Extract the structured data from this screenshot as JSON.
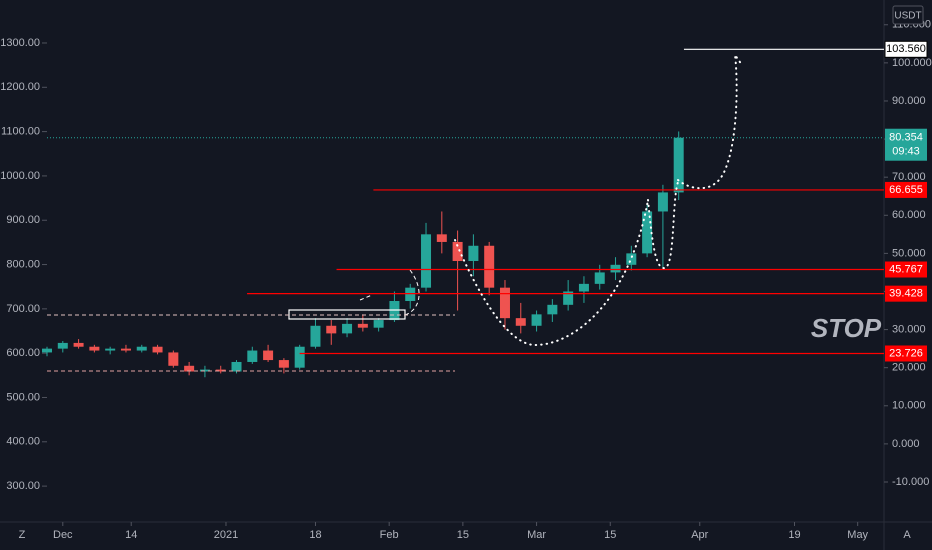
{
  "chart_data": {
    "type": "candlestick",
    "xlim": [
      -3,
      156
    ],
    "xticks": [
      {
        "value": 0,
        "label": "Dec"
      },
      {
        "value": 13,
        "label": "14"
      },
      {
        "value": 31,
        "label": "2021"
      },
      {
        "value": 48,
        "label": "18"
      },
      {
        "value": 62,
        "label": "Feb"
      },
      {
        "value": 76,
        "label": "15"
      },
      {
        "value": 90,
        "label": "Mar"
      },
      {
        "value": 104,
        "label": "15"
      },
      {
        "value": 121,
        "label": "Apr"
      },
      {
        "value": 139,
        "label": "19"
      },
      {
        "value": 151,
        "label": "May"
      }
    ],
    "ylim": [
      219,
      1397
    ],
    "yticks": [
      {
        "value": 300,
        "label": "300.00"
      },
      {
        "value": 400,
        "label": "400.00"
      },
      {
        "value": 500,
        "label": "500.00"
      },
      {
        "value": 600,
        "label": "600.00"
      },
      {
        "value": 700,
        "label": "700.00"
      },
      {
        "value": 800,
        "label": "800.00"
      },
      {
        "value": 900,
        "label": "900.00"
      },
      {
        "value": 1000,
        "label": "1000.00"
      },
      {
        "value": 1100,
        "label": "1100.00"
      },
      {
        "value": 1200,
        "label": "1200.00"
      },
      {
        "value": 1300,
        "label": "1300.00"
      }
    ],
    "y2lim": [
      -20.5,
      116.5
    ],
    "y2ticks": [
      {
        "value": -10,
        "label": "-10.000"
      },
      {
        "value": 0,
        "label": "0.000"
      },
      {
        "value": 10,
        "label": "10.000"
      },
      {
        "value": 20,
        "label": "20.000"
      },
      {
        "value": 30,
        "label": "30.000"
      },
      {
        "value": 40,
        "label": "40.000"
      },
      {
        "value": 50,
        "label": "50.000"
      },
      {
        "value": 60,
        "label": "60.000"
      },
      {
        "value": 70,
        "label": "70.000"
      },
      {
        "value": 80,
        "label": "80.000"
      },
      {
        "value": 90,
        "label": "90.000"
      },
      {
        "value": 100,
        "label": "100.000"
      },
      {
        "value": 110,
        "label": "110.000"
      }
    ],
    "y2_unit": "USDT",
    "grid": false,
    "series": [
      {
        "axis": "y2",
        "up_color": "#26a69a",
        "down_color": "#ef5350",
        "x": [
          -3,
          0,
          3,
          6,
          9,
          12,
          15,
          18,
          21,
          24,
          27,
          30,
          33,
          36,
          39,
          42,
          45,
          48,
          51,
          54,
          57,
          60,
          63,
          66,
          69,
          72,
          75,
          78,
          81,
          84,
          87,
          90,
          93,
          96,
          99,
          102,
          105,
          108,
          111,
          114,
          117
        ],
        "open": [
          24,
          25,
          26.5,
          25.5,
          24.5,
          25,
          24.5,
          25.5,
          24,
          20.5,
          19,
          19.5,
          19,
          21.5,
          24.5,
          22,
          20,
          25.5,
          31,
          29,
          31.5,
          30.5,
          32.5,
          37.5,
          41,
          55,
          53,
          48,
          52,
          41,
          33,
          31,
          34,
          36.5,
          40,
          42,
          45,
          47,
          50,
          61,
          66
        ],
        "high": [
          25.5,
          27,
          27.5,
          26,
          25.5,
          26,
          26,
          26,
          24.5,
          21.5,
          20.5,
          20.5,
          22,
          25.5,
          26,
          22.5,
          26,
          33,
          32.5,
          33,
          34,
          33,
          40,
          42,
          58,
          61,
          56,
          55,
          53,
          43,
          37,
          35,
          38,
          43,
          44,
          47,
          49,
          52,
          63,
          68,
          82
        ],
        "low": [
          23,
          24,
          25,
          24,
          23.5,
          24,
          24,
          23.5,
          20,
          18,
          17.5,
          18.5,
          18.5,
          21,
          21.5,
          18.5,
          19.5,
          25,
          26,
          28,
          29.5,
          29.5,
          32,
          35.5,
          40,
          50,
          35,
          44,
          39,
          30,
          29,
          29.5,
          32,
          35,
          37,
          40.5,
          43,
          45.5,
          49,
          46,
          64
        ],
        "close": [
          25,
          26.5,
          25.5,
          24.5,
          25,
          24.5,
          25.5,
          24,
          20.5,
          19,
          19.5,
          19,
          21.5,
          24.5,
          22,
          20,
          25.5,
          31,
          29,
          31.5,
          30.5,
          32.5,
          37.5,
          41,
          55,
          53,
          48,
          52,
          41,
          33,
          31,
          34,
          36.5,
          40,
          42,
          45,
          47,
          50,
          61,
          66,
          80.354
        ]
      }
    ],
    "levels": [
      {
        "value": 103.56,
        "label": "103.560",
        "color": "#ffffff",
        "from": 118
      },
      {
        "value": 66.655,
        "label": "66.655",
        "color": "#ff0000",
        "from": 59
      },
      {
        "value": 45.767,
        "label": "45.767",
        "color": "#ff0000",
        "from": 52
      },
      {
        "value": 39.428,
        "label": "39.428",
        "color": "#ff0000",
        "from": 35
      },
      {
        "value": 23.726,
        "label": "23.726",
        "color": "#ff0000",
        "from": 45
      }
    ],
    "current_price": {
      "value": 80.354,
      "label": "80.354",
      "countdown": "09:43",
      "color": "#26a69a"
    },
    "annotation": {
      "text": "STOP",
      "color": "#ff1a1a"
    },
    "axis_buttons": [
      "Z",
      "A"
    ]
  }
}
